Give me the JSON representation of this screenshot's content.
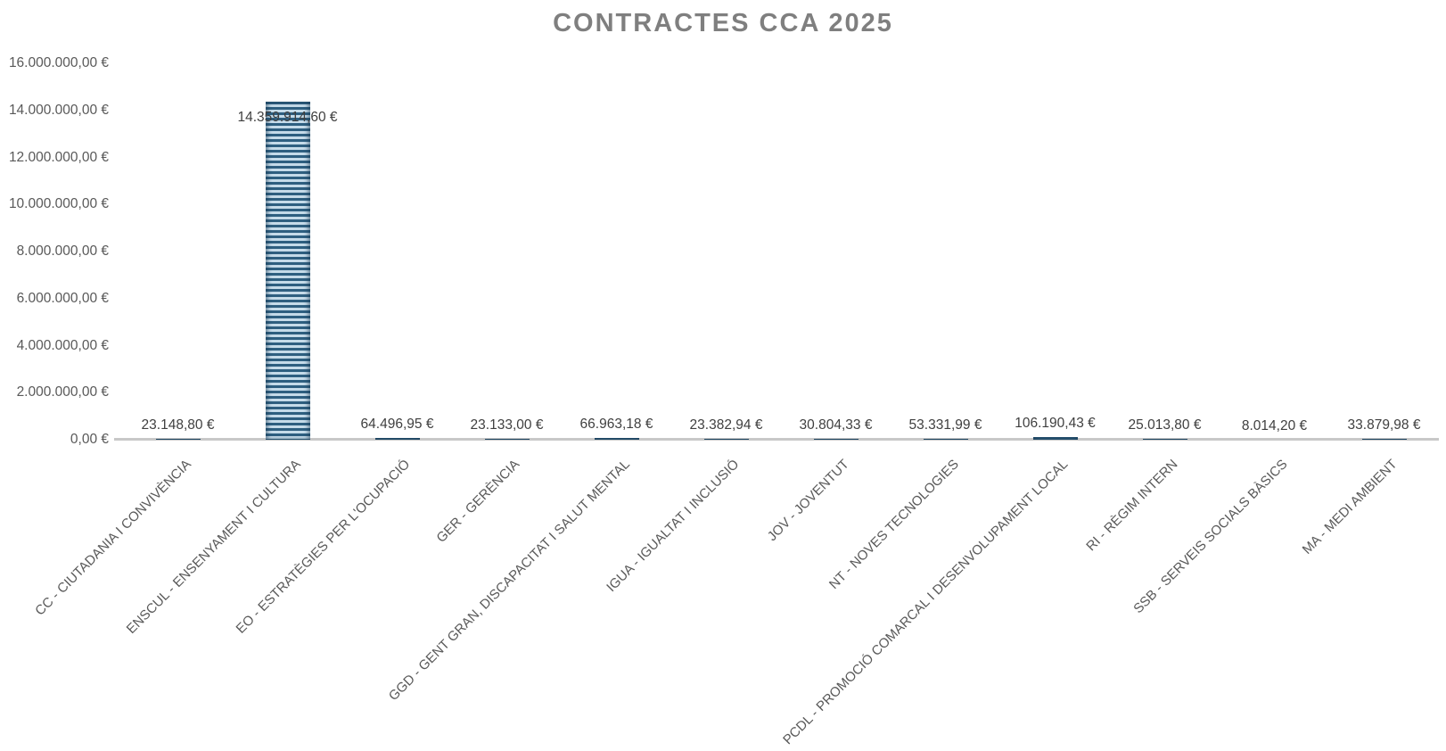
{
  "page": {
    "title": "CONTRACTES CCA 2025"
  },
  "chart_data": {
    "type": "bar",
    "title": "CONTRACTES CCA 2025",
    "xlabel": "",
    "ylabel": "",
    "ylim": [
      0,
      16000000
    ],
    "grid": false,
    "legend_position": "none",
    "bar_fill_style": "horizontal-stripe-pattern",
    "categories": [
      "CC - CIUTADANIA I CONVIVÈNCIA",
      "ENSCUL - ENSENYAMENT I CULTURA",
      "EO - ESTRATÈGIES PER L'OCUPACIÓ",
      "GER - GERÈNCIA",
      "GGD - GENT GRAN, DISCAPACITAT I SALUT MENTAL",
      "IGUA - IGUALTAT I INCLUSIÓ",
      "JOV - JOVENTUT",
      "NT - NOVES TECNOLOGIES",
      "PCDL - PROMOCIÓ COMARCAL I DESENVOLUPAMENT LOCAL",
      "RI - RÈGIM INTERN",
      "SSB - SERVEIS SOCIALS BÀSICS",
      "MA - MEDI AMBIENT"
    ],
    "values": [
      23148.8,
      14359914.6,
      64496.95,
      23133.0,
      66963.18,
      23382.94,
      30804.33,
      53331.99,
      106190.43,
      25013.8,
      8014.2,
      33879.98
    ],
    "value_labels": [
      "23.148,80 €",
      "14.359.914,60 €",
      "64.496,95 €",
      "23.133,00 €",
      "66.963,18 €",
      "23.382,94 €",
      "30.804,33 €",
      "53.331,99 €",
      "106.190,43 €",
      "25.013,80 €",
      "8.014,20 €",
      "33.879,98 €"
    ],
    "y_ticks": [
      {
        "value": 16000000,
        "label": "16.000.000,00 €"
      },
      {
        "value": 14000000,
        "label": "14.000.000,00 €"
      },
      {
        "value": 12000000,
        "label": "12.000.000,00 €"
      },
      {
        "value": 10000000,
        "label": "10.000.000,00 €"
      },
      {
        "value": 8000000,
        "label": "8.000.000,00 €"
      },
      {
        "value": 6000000,
        "label": "6.000.000,00 €"
      },
      {
        "value": 4000000,
        "label": "4.000.000,00 €"
      },
      {
        "value": 2000000,
        "label": "2.000.000,00 €"
      },
      {
        "value": 0,
        "label": "0,00 €"
      }
    ],
    "colors": {
      "stripe_dark": "#2E5F80",
      "stripe_light": "#C5DBE9",
      "title_text": "#7F7F7F",
      "tick_text": "#595959",
      "data_label_text": "#3F3F3F",
      "axis_line": "#C8C8C8",
      "background": "#FFFFFF"
    }
  }
}
